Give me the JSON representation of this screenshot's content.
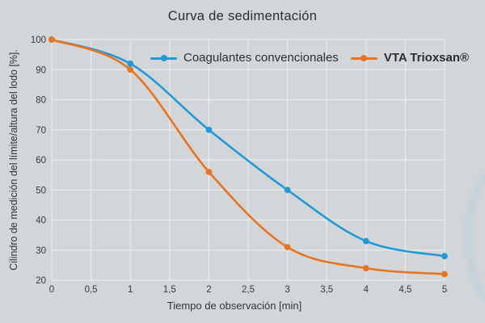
{
  "chart_data": {
    "type": "line",
    "title": "Curva de sedimentación",
    "xlabel": "Tiempo de observación [min]",
    "ylabel": "Cilindro de medición del límite/altura del lodo [%].",
    "x": [
      0,
      1,
      2,
      3,
      4,
      5
    ],
    "series": [
      {
        "name": "Coagulantes convencionales",
        "color": "#1f9ad6",
        "values": [
          100,
          92,
          70,
          50,
          33,
          28
        ]
      },
      {
        "name": "VTA Trioxsan®",
        "color": "#e87420",
        "values": [
          100,
          90,
          56,
          31,
          24,
          22
        ]
      }
    ],
    "x_ticks": [
      0,
      0.5,
      1,
      1.5,
      2,
      2.5,
      3,
      3.5,
      4,
      4.5,
      5
    ],
    "x_tick_labels": [
      "0",
      "0,5",
      "1",
      "1,5",
      "2",
      "2,5",
      "3",
      "3,5",
      "4",
      "4,5",
      "5"
    ],
    "y_ticks": [
      20,
      30,
      40,
      50,
      60,
      70,
      80,
      90,
      100
    ],
    "xlim": [
      0,
      5
    ],
    "ylim": [
      20,
      100
    ],
    "grid": true,
    "grid_color": "#e9ebed",
    "background": "#d3d6d8",
    "legend_position": "top-inside"
  }
}
